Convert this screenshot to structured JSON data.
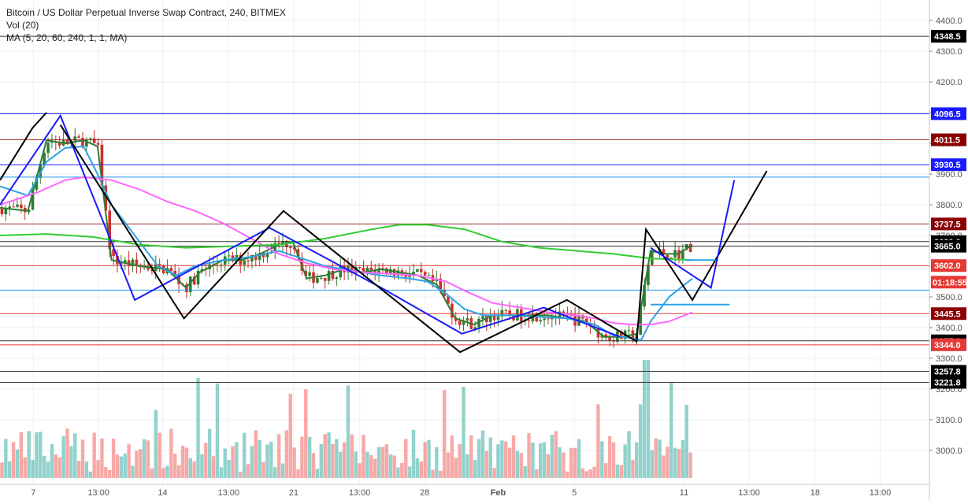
{
  "chart_data": {
    "type": "candlestick",
    "title": "Bitcoin / US Dollar Perpetual Inverse Swap Contract, 240, BITMEX",
    "indicators": [
      "Vol (20)",
      "MA (5, 20, 60, 240, 1, 1, MA)"
    ],
    "ylim": [
      2940,
      4450
    ],
    "y_ticks": [
      3000,
      3100,
      3200,
      3300,
      3400,
      3500,
      3600,
      3700,
      3800,
      3900,
      4000,
      4100,
      4200,
      4300,
      4400
    ],
    "y_tick_labels": [
      "3000.0",
      "3100.0",
      "3200.0",
      "3300.0",
      "3400.0",
      "3500.0",
      "3600.0",
      "3700.0",
      "3800.0",
      "3900.0",
      "4000.0",
      "4100.0",
      "4200.0",
      "4300.0",
      "4400.0"
    ],
    "x_ticks": [
      {
        "label": "7",
        "frac": 0.036
      },
      {
        "label": "13:00",
        "frac": 0.106
      },
      {
        "label": "14",
        "frac": 0.175
      },
      {
        "label": "13:00",
        "frac": 0.246
      },
      {
        "label": "21",
        "frac": 0.316
      },
      {
        "label": "13:00",
        "frac": 0.387
      },
      {
        "label": "28",
        "frac": 0.457
      },
      {
        "label": "Feb",
        "frac": 0.536
      },
      {
        "label": "5",
        "frac": 0.618
      },
      {
        "label": "11",
        "frac": 0.736
      },
      {
        "label": "13:00",
        "frac": 0.806
      },
      {
        "label": "18",
        "frac": 0.877
      },
      {
        "label": "13:00",
        "frac": 0.947
      }
    ],
    "horizontal_levels": [
      {
        "value": 4348.5,
        "label": "4348.5",
        "color": "#000000",
        "line": "#333333"
      },
      {
        "value": 4096.5,
        "label": "4096.5",
        "color": "#1a1aff",
        "line": "#1a1aff"
      },
      {
        "value": 4011.5,
        "label": "4011.5",
        "color": "#8b0000",
        "line": "#a52a2a"
      },
      {
        "value": 3930.5,
        "label": "3930.5",
        "color": "#1a1aff",
        "line": "#1a1aff"
      },
      {
        "value": 3890,
        "label": "",
        "color": "#2196f3",
        "line": "#2196f3"
      },
      {
        "value": 3737.5,
        "label": "3737.5",
        "color": "#8b0000",
        "line": "#a52a2a"
      },
      {
        "value": 3680.0,
        "label": "3680.0",
        "color": "#000000",
        "line": "#333333"
      },
      {
        "value": 3665.0,
        "label": "3665.0",
        "color": "#000000",
        "line": "#333333"
      },
      {
        "value": 3602.0,
        "label": "3602.0",
        "color": "#e53935",
        "line": "#e53935"
      },
      {
        "value": 3522,
        "label": "",
        "color": "#2196f3",
        "line": "#2196f3"
      },
      {
        "value": 3445.5,
        "label": "3445.5",
        "color": "#8b0000",
        "line": "#e53935"
      },
      {
        "value": 3357.0,
        "label": "3357.0",
        "color": "#000000",
        "line": "#333333"
      },
      {
        "value": 3344.0,
        "label": "3344.0",
        "color": "#e53935",
        "line": "#e53935"
      },
      {
        "value": 3257.8,
        "label": "3257.8",
        "color": "#000000",
        "line": "#333333"
      },
      {
        "value": 3221.8,
        "label": "3221.8",
        "color": "#000000",
        "line": "#333333"
      }
    ],
    "price_tag": {
      "value": 3548,
      "label": "01:18:55",
      "color": "#e53935"
    },
    "moving_averages": [
      {
        "period": 5,
        "color": "#2e7d32",
        "points": [
          [
            0,
            3790
          ],
          [
            0.03,
            3780
          ],
          [
            0.05,
            4010
          ],
          [
            0.07,
            4000
          ],
          [
            0.09,
            4010
          ],
          [
            0.105,
            3990
          ],
          [
            0.12,
            3620
          ],
          [
            0.15,
            3600
          ],
          [
            0.18,
            3590
          ],
          [
            0.2,
            3530
          ],
          [
            0.215,
            3580
          ],
          [
            0.24,
            3620
          ],
          [
            0.26,
            3620
          ],
          [
            0.28,
            3640
          ],
          [
            0.3,
            3670
          ],
          [
            0.315,
            3680
          ],
          [
            0.33,
            3560
          ],
          [
            0.35,
            3570
          ],
          [
            0.37,
            3590
          ],
          [
            0.39,
            3580
          ],
          [
            0.41,
            3590
          ],
          [
            0.43,
            3580
          ],
          [
            0.45,
            3570
          ],
          [
            0.47,
            3540
          ],
          [
            0.49,
            3430
          ],
          [
            0.51,
            3410
          ],
          [
            0.53,
            3440
          ],
          [
            0.55,
            3440
          ],
          [
            0.57,
            3440
          ],
          [
            0.59,
            3440
          ],
          [
            0.61,
            3430
          ],
          [
            0.63,
            3420
          ],
          [
            0.65,
            3370
          ],
          [
            0.67,
            3370
          ],
          [
            0.685,
            3380
          ],
          [
            0.7,
            3650
          ],
          [
            0.715,
            3640
          ],
          [
            0.73,
            3640
          ],
          [
            0.745,
            3670
          ]
        ]
      },
      {
        "period": 20,
        "color": "#29a3e6",
        "points": [
          [
            0,
            3860
          ],
          [
            0.03,
            3830
          ],
          [
            0.05,
            3940
          ],
          [
            0.07,
            3985
          ],
          [
            0.09,
            3990
          ],
          [
            0.105,
            3900
          ],
          [
            0.12,
            3800
          ],
          [
            0.15,
            3680
          ],
          [
            0.17,
            3600
          ],
          [
            0.19,
            3570
          ],
          [
            0.21,
            3600
          ],
          [
            0.24,
            3620
          ],
          [
            0.27,
            3630
          ],
          [
            0.3,
            3650
          ],
          [
            0.32,
            3630
          ],
          [
            0.35,
            3600
          ],
          [
            0.38,
            3585
          ],
          [
            0.41,
            3570
          ],
          [
            0.44,
            3560
          ],
          [
            0.46,
            3550
          ],
          [
            0.48,
            3510
          ],
          [
            0.5,
            3460
          ],
          [
            0.52,
            3440
          ],
          [
            0.55,
            3440
          ],
          [
            0.58,
            3435
          ],
          [
            0.61,
            3430
          ],
          [
            0.64,
            3410
          ],
          [
            0.66,
            3375
          ],
          [
            0.69,
            3360
          ],
          [
            0.7,
            3420
          ],
          [
            0.72,
            3500
          ],
          [
            0.745,
            3560
          ]
        ]
      },
      {
        "period": 60,
        "color": "#ff66ff",
        "points": [
          [
            0,
            3800
          ],
          [
            0.04,
            3840
          ],
          [
            0.07,
            3880
          ],
          [
            0.09,
            3890
          ],
          [
            0.12,
            3880
          ],
          [
            0.15,
            3850
          ],
          [
            0.18,
            3810
          ],
          [
            0.21,
            3780
          ],
          [
            0.24,
            3740
          ],
          [
            0.27,
            3690
          ],
          [
            0.3,
            3640
          ],
          [
            0.33,
            3610
          ],
          [
            0.36,
            3590
          ],
          [
            0.39,
            3580
          ],
          [
            0.42,
            3575
          ],
          [
            0.45,
            3570
          ],
          [
            0.48,
            3550
          ],
          [
            0.5,
            3520
          ],
          [
            0.53,
            3480
          ],
          [
            0.56,
            3465
          ],
          [
            0.59,
            3450
          ],
          [
            0.62,
            3440
          ],
          [
            0.64,
            3430
          ],
          [
            0.66,
            3415
          ],
          [
            0.68,
            3410
          ],
          [
            0.7,
            3410
          ],
          [
            0.72,
            3420
          ],
          [
            0.745,
            3450
          ]
        ]
      },
      {
        "period": 240,
        "color": "#33cc33",
        "points": [
          [
            0,
            3700
          ],
          [
            0.05,
            3705
          ],
          [
            0.1,
            3695
          ],
          [
            0.15,
            3670
          ],
          [
            0.2,
            3660
          ],
          [
            0.25,
            3665
          ],
          [
            0.3,
            3670
          ],
          [
            0.35,
            3690
          ],
          [
            0.4,
            3720
          ],
          [
            0.43,
            3735
          ],
          [
            0.46,
            3735
          ],
          [
            0.5,
            3720
          ],
          [
            0.54,
            3680
          ],
          [
            0.58,
            3660
          ],
          [
            0.62,
            3650
          ],
          [
            0.66,
            3640
          ],
          [
            0.7,
            3625
          ],
          [
            0.745,
            3620
          ]
        ]
      }
    ],
    "drawn_lines": [
      {
        "color": "#000000",
        "points": [
          [
            0,
            3880
          ],
          [
            0.035,
            4050
          ],
          [
            0.05,
            4100
          ]
        ]
      },
      {
        "color": "#1a1aff",
        "points": [
          [
            0,
            3800
          ],
          [
            0.065,
            4090
          ],
          [
            0.145,
            3490
          ],
          [
            0.29,
            3725
          ],
          [
            0.41,
            3530
          ],
          [
            0.497,
            3380
          ],
          [
            0.585,
            3465
          ],
          [
            0.667,
            3370
          ]
        ]
      },
      {
        "color": "#000000",
        "points": [
          [
            0.065,
            4060
          ],
          [
            0.198,
            3430
          ],
          [
            0.305,
            3780
          ],
          [
            0.495,
            3320
          ],
          [
            0.61,
            3490
          ],
          [
            0.685,
            3355
          ],
          [
            0.695,
            3720
          ],
          [
            0.745,
            3490
          ],
          [
            0.825,
            3910
          ]
        ]
      },
      {
        "color": "#1a1aff",
        "points": [
          [
            0.7,
            3660
          ],
          [
            0.765,
            3530
          ],
          [
            0.79,
            3880
          ]
        ]
      },
      {
        "color": "#29a3e6",
        "points": [
          [
            0.7,
            3475
          ],
          [
            0.785,
            3475
          ]
        ]
      },
      {
        "color": "#29a3e6",
        "points": [
          [
            0.738,
            3620
          ],
          [
            0.77,
            3620
          ]
        ]
      }
    ],
    "candles_count": 180,
    "volume_max": 180
  }
}
